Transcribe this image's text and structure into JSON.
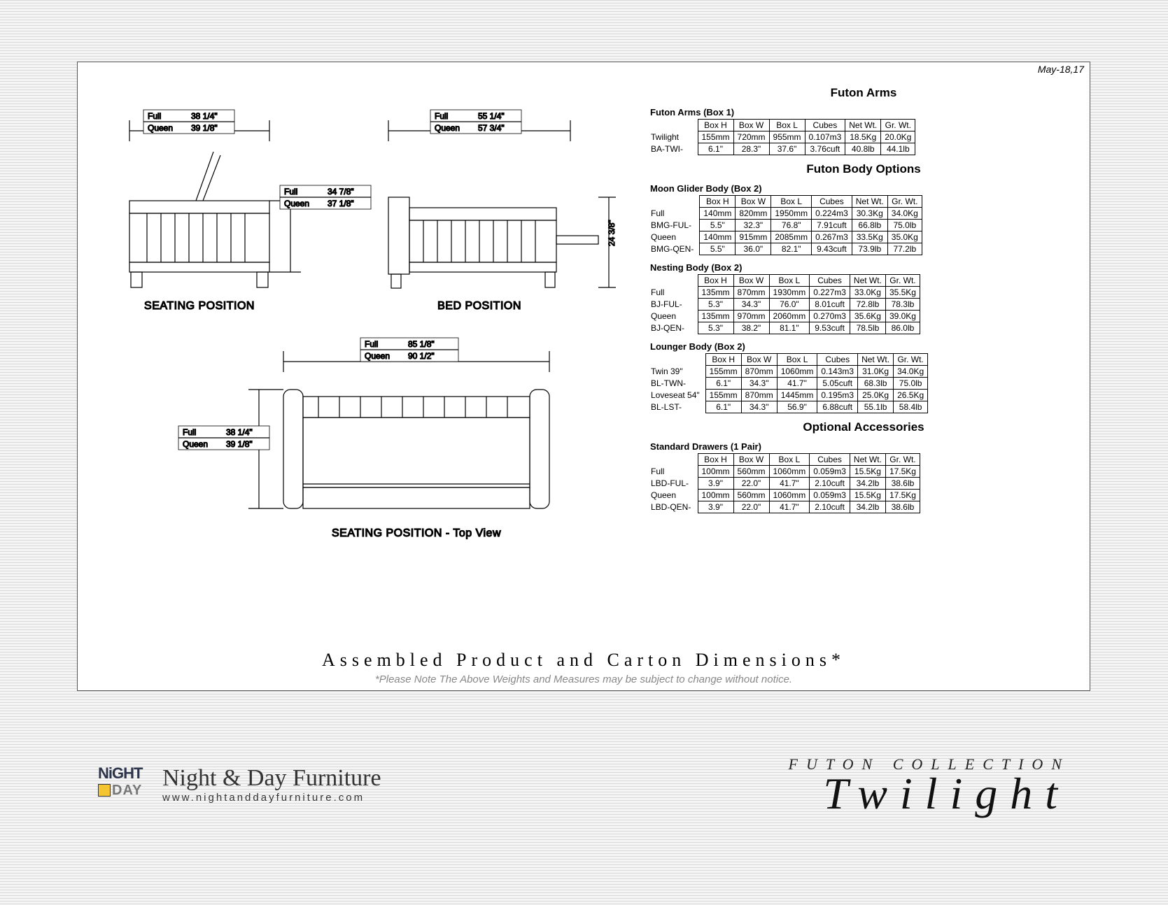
{
  "date": "May-18,17",
  "diagrams": {
    "seating": {
      "label": "SEATING POSITION",
      "width_full_label": "Full",
      "width_full": "38 1/4\"",
      "width_queen_label": "Queen",
      "width_queen": "39 1/8\"",
      "depth_full_label": "Full",
      "depth_full": "34 7/8\"",
      "depth_queen_label": "Queen",
      "depth_queen": "37 1/8\""
    },
    "bed": {
      "label": "BED POSITION",
      "width_full_label": "Full",
      "width_full": "55 1/4\"",
      "width_queen_label": "Queen",
      "width_queen": "57 3/4\"",
      "height_label": "24 3/8\""
    },
    "top": {
      "label": "SEATING POSITION - Top View",
      "length_full_label": "Full",
      "length_full": "85 1/8\"",
      "length_queen_label": "Queen",
      "length_queen": "90 1/2\"",
      "depth_full_label": "Full",
      "depth_full": "38 1/4\"",
      "depth_queen_label": "Queen",
      "depth_queen": "39 1/8\""
    }
  },
  "sections": {
    "arms_heading": "Futon Arms",
    "body_heading": "Futon Body Options",
    "acc_heading": "Optional Accessories"
  },
  "headers": [
    "Box H",
    "Box W",
    "Box L",
    "Cubes",
    "Net Wt.",
    "Gr. Wt."
  ],
  "tables": {
    "arms": {
      "title": "Futon Arms (Box 1)",
      "rows": [
        {
          "label": "Twilight",
          "cells": [
            "155mm",
            "720mm",
            "955mm",
            "0.107m3",
            "18.5Kg",
            "20.0Kg"
          ]
        },
        {
          "label": "BA-TWI-",
          "cells": [
            "6.1\"",
            "28.3\"",
            "37.6\"",
            "3.76cuft",
            "40.8lb",
            "44.1lb"
          ]
        }
      ]
    },
    "moon": {
      "title": "Moon Glider Body (Box 2)",
      "rows": [
        {
          "label": "Full",
          "cells": [
            "140mm",
            "820mm",
            "1950mm",
            "0.224m3",
            "30.3Kg",
            "34.0Kg"
          ]
        },
        {
          "label": "BMG-FUL-",
          "cells": [
            "5.5\"",
            "32.3\"",
            "76.8\"",
            "7.91cuft",
            "66.8lb",
            "75.0lb"
          ]
        },
        {
          "label": "Queen",
          "cells": [
            "140mm",
            "915mm",
            "2085mm",
            "0.267m3",
            "33.5Kg",
            "35.0Kg"
          ]
        },
        {
          "label": "BMG-QEN-",
          "cells": [
            "5.5\"",
            "36.0\"",
            "82.1\"",
            "9.43cuft",
            "73.9lb",
            "77.2lb"
          ]
        }
      ]
    },
    "nesting": {
      "title": "Nesting Body (Box 2)",
      "rows": [
        {
          "label": "Full",
          "cells": [
            "135mm",
            "870mm",
            "1930mm",
            "0.227m3",
            "33.0Kg",
            "35.5Kg"
          ]
        },
        {
          "label": "BJ-FUL-",
          "cells": [
            "5.3\"",
            "34.3\"",
            "76.0\"",
            "8.01cuft",
            "72.8lb",
            "78.3lb"
          ]
        },
        {
          "label": "Queen",
          "cells": [
            "135mm",
            "970mm",
            "2060mm",
            "0.270m3",
            "35.6Kg",
            "39.0Kg"
          ]
        },
        {
          "label": "BJ-QEN-",
          "cells": [
            "5.3\"",
            "38.2\"",
            "81.1\"",
            "9.53cuft",
            "78.5lb",
            "86.0lb"
          ]
        }
      ]
    },
    "lounger": {
      "title": "Lounger Body (Box 2)",
      "rows": [
        {
          "label": "Twin 39\"",
          "cells": [
            "155mm",
            "870mm",
            "1060mm",
            "0.143m3",
            "31.0Kg",
            "34.0Kg"
          ]
        },
        {
          "label": "BL-TWN-",
          "cells": [
            "6.1\"",
            "34.3\"",
            "41.7\"",
            "5.05cuft",
            "68.3lb",
            "75.0lb"
          ]
        },
        {
          "label": "Loveseat 54\"",
          "cells": [
            "155mm",
            "870mm",
            "1445mm",
            "0.195m3",
            "25.0Kg",
            "26.5Kg"
          ]
        },
        {
          "label": "BL-LST-",
          "cells": [
            "6.1\"",
            "34.3\"",
            "56.9\"",
            "6.88cuft",
            "55.1lb",
            "58.4lb"
          ]
        }
      ]
    },
    "drawers": {
      "title": "Standard Drawers (1 Pair)",
      "rows": [
        {
          "label": "Full",
          "cells": [
            "100mm",
            "560mm",
            "1060mm",
            "0.059m3",
            "15.5Kg",
            "17.5Kg"
          ]
        },
        {
          "label": "LBD-FUL-",
          "cells": [
            "3.9\"",
            "22.0\"",
            "41.7\"",
            "2.10cuft",
            "34.2lb",
            "38.6lb"
          ]
        },
        {
          "label": "Queen",
          "cells": [
            "100mm",
            "560mm",
            "1060mm",
            "0.059m3",
            "15.5Kg",
            "17.5Kg"
          ]
        },
        {
          "label": "LBD-QEN-",
          "cells": [
            "3.9\"",
            "22.0\"",
            "41.7\"",
            "2.10cuft",
            "34.2lb",
            "38.6lb"
          ]
        }
      ]
    }
  },
  "assembled": "Assembled Product and Carton Dimensions*",
  "footnote": "*Please Note The Above Weights and Measures may be subject to change without notice.",
  "brand": {
    "logo_top": "NiGHT",
    "logo_bottom": "DAY",
    "name": "Night & Day Furniture",
    "url": "www.nightanddayfurniture.com"
  },
  "collection": {
    "sub": "FUTON COLLECTION",
    "title": "Twilight"
  }
}
